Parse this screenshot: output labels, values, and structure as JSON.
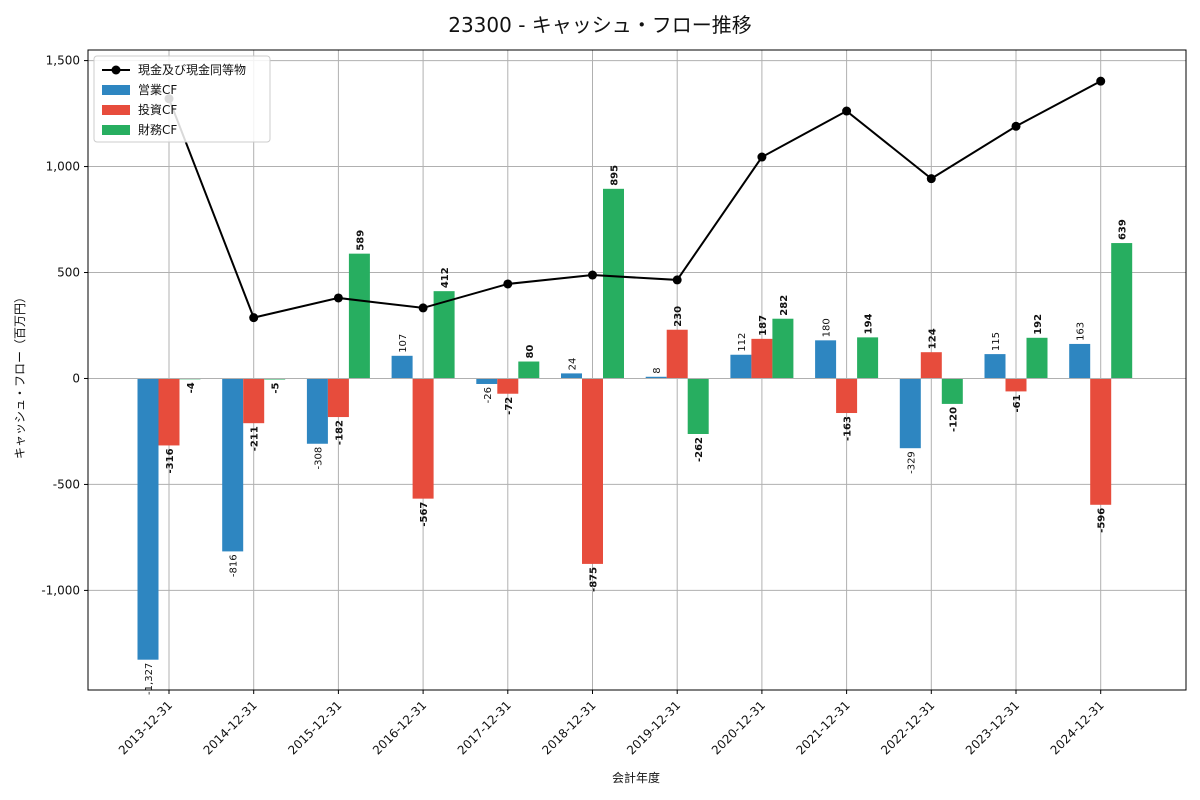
{
  "chart_data": {
    "type": "bar",
    "title": "23300 - キャッシュ・フロー推移",
    "xlabel": "会計年度",
    "ylabel": "キャッシュ・フロー（百万円）",
    "ylim": [
      -1470,
      1550
    ],
    "yticks": [
      -1000,
      -500,
      0,
      500,
      1000,
      1500
    ],
    "ytick_labels": [
      "-1,000",
      "-500",
      "0",
      "500",
      "1,000",
      "1,500"
    ],
    "grid": true,
    "legend_position": "top-left",
    "categories": [
      "2013-12-31",
      "2014-12-31",
      "2015-12-31",
      "2016-12-31",
      "2017-12-31",
      "2018-12-31",
      "2019-12-31",
      "2020-12-31",
      "2021-12-31",
      "2022-12-31",
      "2023-12-31",
      "2024-12-31"
    ],
    "series": [
      {
        "name": "営業CF",
        "kind": "bar",
        "color": "#2e86c1",
        "values": [
          -1327,
          -816,
          -308,
          107,
          -26,
          24,
          8,
          112,
          180,
          -329,
          115,
          163
        ],
        "labels": [
          "-1,327",
          "-816",
          "-308",
          "107",
          "-26",
          "24",
          "8",
          "112",
          "180",
          "-329",
          "115",
          "163"
        ]
      },
      {
        "name": "投資CF",
        "kind": "bar",
        "color": "#e74c3c",
        "values": [
          -316,
          -211,
          -182,
          -567,
          -72,
          -875,
          230,
          187,
          -163,
          124,
          -61,
          -596
        ],
        "labels": [
          "-316",
          "-211",
          "-182",
          "-567",
          "-72",
          "-875",
          "230",
          "187",
          "-163",
          "124",
          "-61",
          "-596"
        ]
      },
      {
        "name": "財務CF",
        "kind": "bar",
        "color": "#27ae60",
        "values": [
          -4,
          -5,
          589,
          412,
          80,
          895,
          -262,
          282,
          194,
          -120,
          192,
          639
        ],
        "labels": [
          "-4",
          "-5",
          "589",
          "412",
          "80",
          "895",
          "-262",
          "282",
          "194",
          "-120",
          "192",
          "639"
        ]
      },
      {
        "name": "現金及び現金同等物",
        "kind": "line",
        "color": "#000000",
        "values": [
          1320,
          287,
          380,
          333,
          446,
          488,
          465,
          1045,
          1262,
          943,
          1190,
          1403
        ]
      }
    ]
  }
}
